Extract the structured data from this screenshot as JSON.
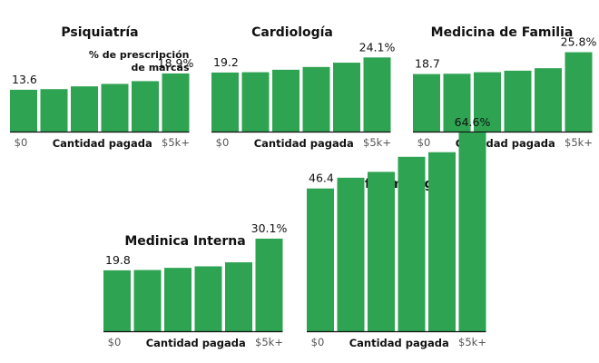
{
  "chart_data": [
    {
      "type": "bar",
      "title": "Psiquiatría",
      "subtitle_lines": [
        "% de prescripción",
        "de marcas"
      ],
      "categories": [
        "",
        "",
        "",
        "",
        "",
        ""
      ],
      "values": [
        13.6,
        13.8,
        14.7,
        15.5,
        16.4,
        18.9
      ],
      "data_labels": {
        "first": "13.6",
        "last": "18.9%"
      },
      "xlabel": "Cantidad pagada",
      "x_range_labels": [
        "$0",
        "$5k+"
      ],
      "ylabel": "",
      "ylim": [
        0,
        70
      ]
    },
    {
      "type": "bar",
      "title": "Cardiología",
      "categories": [
        "",
        "",
        "",
        "",
        "",
        ""
      ],
      "values": [
        19.2,
        19.3,
        20.1,
        21.0,
        22.4,
        24.1
      ],
      "data_labels": {
        "first": "19.2",
        "last": "24.1%"
      },
      "xlabel": "Cantidad pagada",
      "x_range_labels": [
        "$0",
        "$5k+"
      ],
      "ylabel": "",
      "ylim": [
        0,
        70
      ]
    },
    {
      "type": "bar",
      "title": "Medicina de Familia",
      "categories": [
        "",
        "",
        "",
        "",
        "",
        ""
      ],
      "values": [
        18.7,
        18.8,
        19.3,
        19.8,
        20.6,
        25.8
      ],
      "data_labels": {
        "first": "18.7",
        "last": "25.8%"
      },
      "xlabel": "Cantidad pagada",
      "x_range_labels": [
        "$0",
        "$5k+"
      ],
      "ylabel": "",
      "ylim": [
        0,
        70
      ]
    },
    {
      "type": "bar",
      "title": "Medinica Interna",
      "categories": [
        "",
        "",
        "",
        "",
        "",
        ""
      ],
      "values": [
        19.8,
        19.9,
        20.6,
        21.1,
        22.4,
        30.1
      ],
      "data_labels": {
        "first": "19.8",
        "last": "30.1%"
      },
      "xlabel": "Cantidad pagada",
      "x_range_labels": [
        "$0",
        "$5k+"
      ],
      "ylabel": "",
      "ylim": [
        0,
        70
      ]
    },
    {
      "type": "bar",
      "title": "Oftalmología",
      "categories": [
        "",
        "",
        "",
        "",
        "",
        ""
      ],
      "values": [
        46.4,
        49.9,
        51.8,
        56.7,
        58.2,
        64.6
      ],
      "data_labels": {
        "first": "46.4",
        "last": "64.6%"
      },
      "xlabel": "Cantidad pagada",
      "x_range_labels": [
        "$0",
        "$5k+"
      ],
      "ylabel": "",
      "ylim": [
        0,
        70
      ]
    }
  ],
  "colors": {
    "bar": "#2ea352",
    "axis": "#111111",
    "tick": "#555555"
  }
}
